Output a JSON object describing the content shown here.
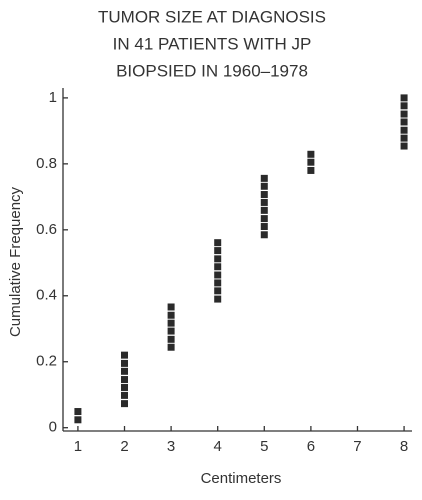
{
  "chart_data": {
    "type": "scatter",
    "title": [
      "TUMOR SIZE AT DIAGNOSIS",
      "IN 41 PATIENTS WITH JP",
      "BIOPSIED IN 1960–1978"
    ],
    "x_label": "Centimeters",
    "y_label": "Cumulative Frequency",
    "x": [
      1,
      1,
      2,
      2,
      2,
      2,
      2,
      2,
      2,
      3,
      3,
      3,
      3,
      3,
      3,
      4,
      4,
      4,
      4,
      4,
      4,
      4,
      4,
      5,
      5,
      5,
      5,
      5,
      5,
      5,
      5,
      6,
      6,
      6,
      8,
      8,
      8,
      8,
      8,
      8,
      8
    ],
    "values": [
      0.024,
      0.049,
      0.073,
      0.098,
      0.122,
      0.146,
      0.171,
      0.195,
      0.22,
      0.244,
      0.268,
      0.293,
      0.317,
      0.341,
      0.366,
      0.39,
      0.415,
      0.439,
      0.463,
      0.488,
      0.512,
      0.537,
      0.561,
      0.585,
      0.61,
      0.634,
      0.659,
      0.683,
      0.707,
      0.732,
      0.756,
      0.78,
      0.805,
      0.829,
      0.854,
      0.878,
      0.902,
      0.927,
      0.951,
      0.976,
      1
    ],
    "color": "#2a2a2a",
    "xlim": [
      0.68,
      8.17
    ],
    "ylim": [
      -0.01,
      1.03
    ],
    "xticks": [
      1,
      2,
      3,
      4,
      5,
      6,
      7,
      8
    ],
    "yticks": [
      0,
      0.2,
      0.4,
      0.6,
      0.8,
      1
    ],
    "grid": false
  }
}
